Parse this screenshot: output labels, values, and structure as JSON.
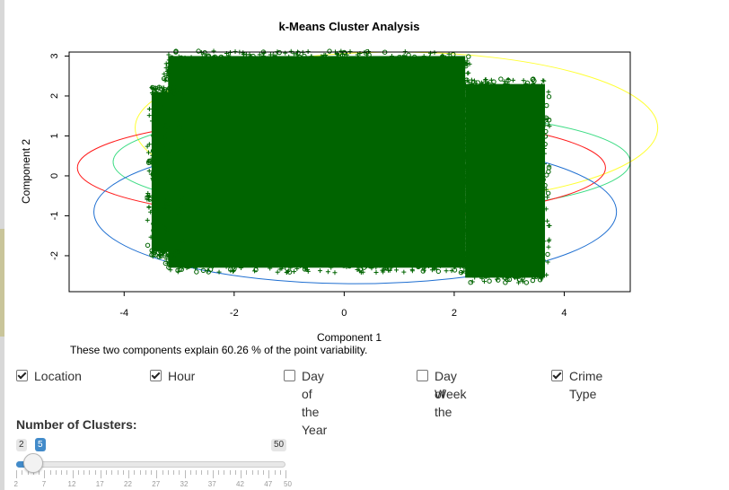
{
  "chart_data": {
    "type": "scatter",
    "title": "k-Means Cluster Analysis",
    "xlabel": "Component 1",
    "ylabel": "Component 2",
    "xlim": [
      -5.0,
      5.2
    ],
    "ylim": [
      -2.9,
      3.1
    ],
    "xticks": [
      -4,
      -2,
      0,
      2,
      4
    ],
    "yticks": [
      -2,
      -1,
      0,
      1,
      2,
      3
    ],
    "point_color": "#006400",
    "point_regions": [
      {
        "x": [
          -3.2,
          2.2
        ],
        "y": [
          -2.3,
          3.0
        ]
      },
      {
        "x": [
          -3.5,
          -3.0
        ],
        "y": [
          -1.9,
          2.1
        ]
      },
      {
        "x": [
          2.2,
          3.65
        ],
        "y": [
          -2.55,
          2.3
        ]
      }
    ],
    "ellipses": [
      {
        "cluster": 1,
        "color": "#ffff33",
        "center": [
          0.95,
          1.2
        ],
        "rx": 4.75,
        "ry": 1.9
      },
      {
        "cluster": 2,
        "color": "#3ddc84",
        "center": [
          0.5,
          0.35
        ],
        "rx": 4.7,
        "ry": 1.3
      },
      {
        "cluster": 3,
        "color": "#ff1a1a",
        "center": [
          -0.05,
          0.2
        ],
        "rx": 4.8,
        "ry": 1.3
      },
      {
        "cluster": 4,
        "color": "#1f6fd1",
        "center": [
          0.2,
          -0.9
        ],
        "rx": 4.75,
        "ry": 1.8
      }
    ],
    "legend": "none"
  },
  "caption": "These two components explain 60.26 % of the point variability.",
  "checkboxes": [
    {
      "label": "Location",
      "checked": true
    },
    {
      "label": "Hour",
      "checked": true
    },
    {
      "label": "Day of the Year",
      "checked": false
    },
    {
      "label": "Day of the",
      "label2": "Week",
      "checked": false
    },
    {
      "label": "Crime Type",
      "checked": true
    }
  ],
  "slider": {
    "title": "Number of Clusters:",
    "min": 2,
    "max": 50,
    "value": 5,
    "min_label": "2",
    "max_label": "50",
    "value_label": "5",
    "tick_labels": [
      "2",
      "7",
      "12",
      "17",
      "22",
      "27",
      "32",
      "37",
      "42",
      "47",
      "50"
    ],
    "fill_color": "#428bca"
  }
}
